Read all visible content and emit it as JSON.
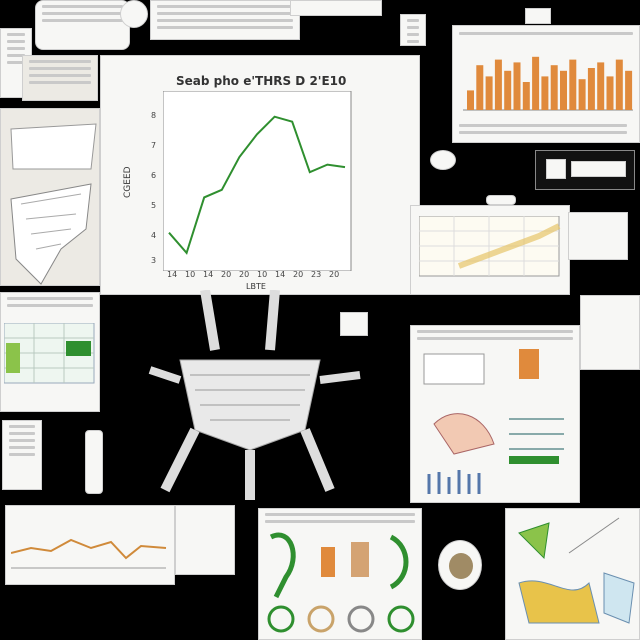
{
  "main_chart": {
    "title": "Seab pho e'THRS D 2'E10",
    "ylabel": "CGEED",
    "xlabel": "LBTE",
    "y_ticks": [
      "8",
      "7",
      "6",
      "5",
      "4",
      "3"
    ],
    "x_ticks": [
      "14",
      "10",
      "14",
      "20",
      "20",
      "10",
      "14",
      "20",
      "23",
      "20"
    ],
    "line_color": "#2f8f2f"
  },
  "chart_data": {
    "type": "line",
    "title": "Seab pho e'THRS D 2'E10",
    "xlabel": "LBTE",
    "ylabel": "CGEED",
    "x": [
      0,
      1,
      2,
      3,
      4,
      5,
      6,
      7,
      8,
      9,
      10
    ],
    "y": [
      3.2,
      2.4,
      4.6,
      4.9,
      6.2,
      7.1,
      7.8,
      7.6,
      5.6,
      5.9,
      5.8
    ],
    "ylim": [
      2,
      8.5
    ],
    "grid": false
  },
  "right_chart": {
    "bar_color": "#e08a3c",
    "bars": [
      0.35,
      0.8,
      0.6,
      0.9,
      0.7,
      0.85,
      0.5,
      0.95,
      0.6,
      0.8,
      0.7,
      0.9,
      0.55,
      0.75,
      0.85,
      0.6,
      0.9,
      0.7
    ]
  },
  "bottom_left_chart": {
    "line_color": "#d08a3a"
  },
  "palette": {
    "background": "#000000",
    "paper": "#f7f7f5",
    "green": "#2f8f2f",
    "orange": "#e08a3c"
  }
}
